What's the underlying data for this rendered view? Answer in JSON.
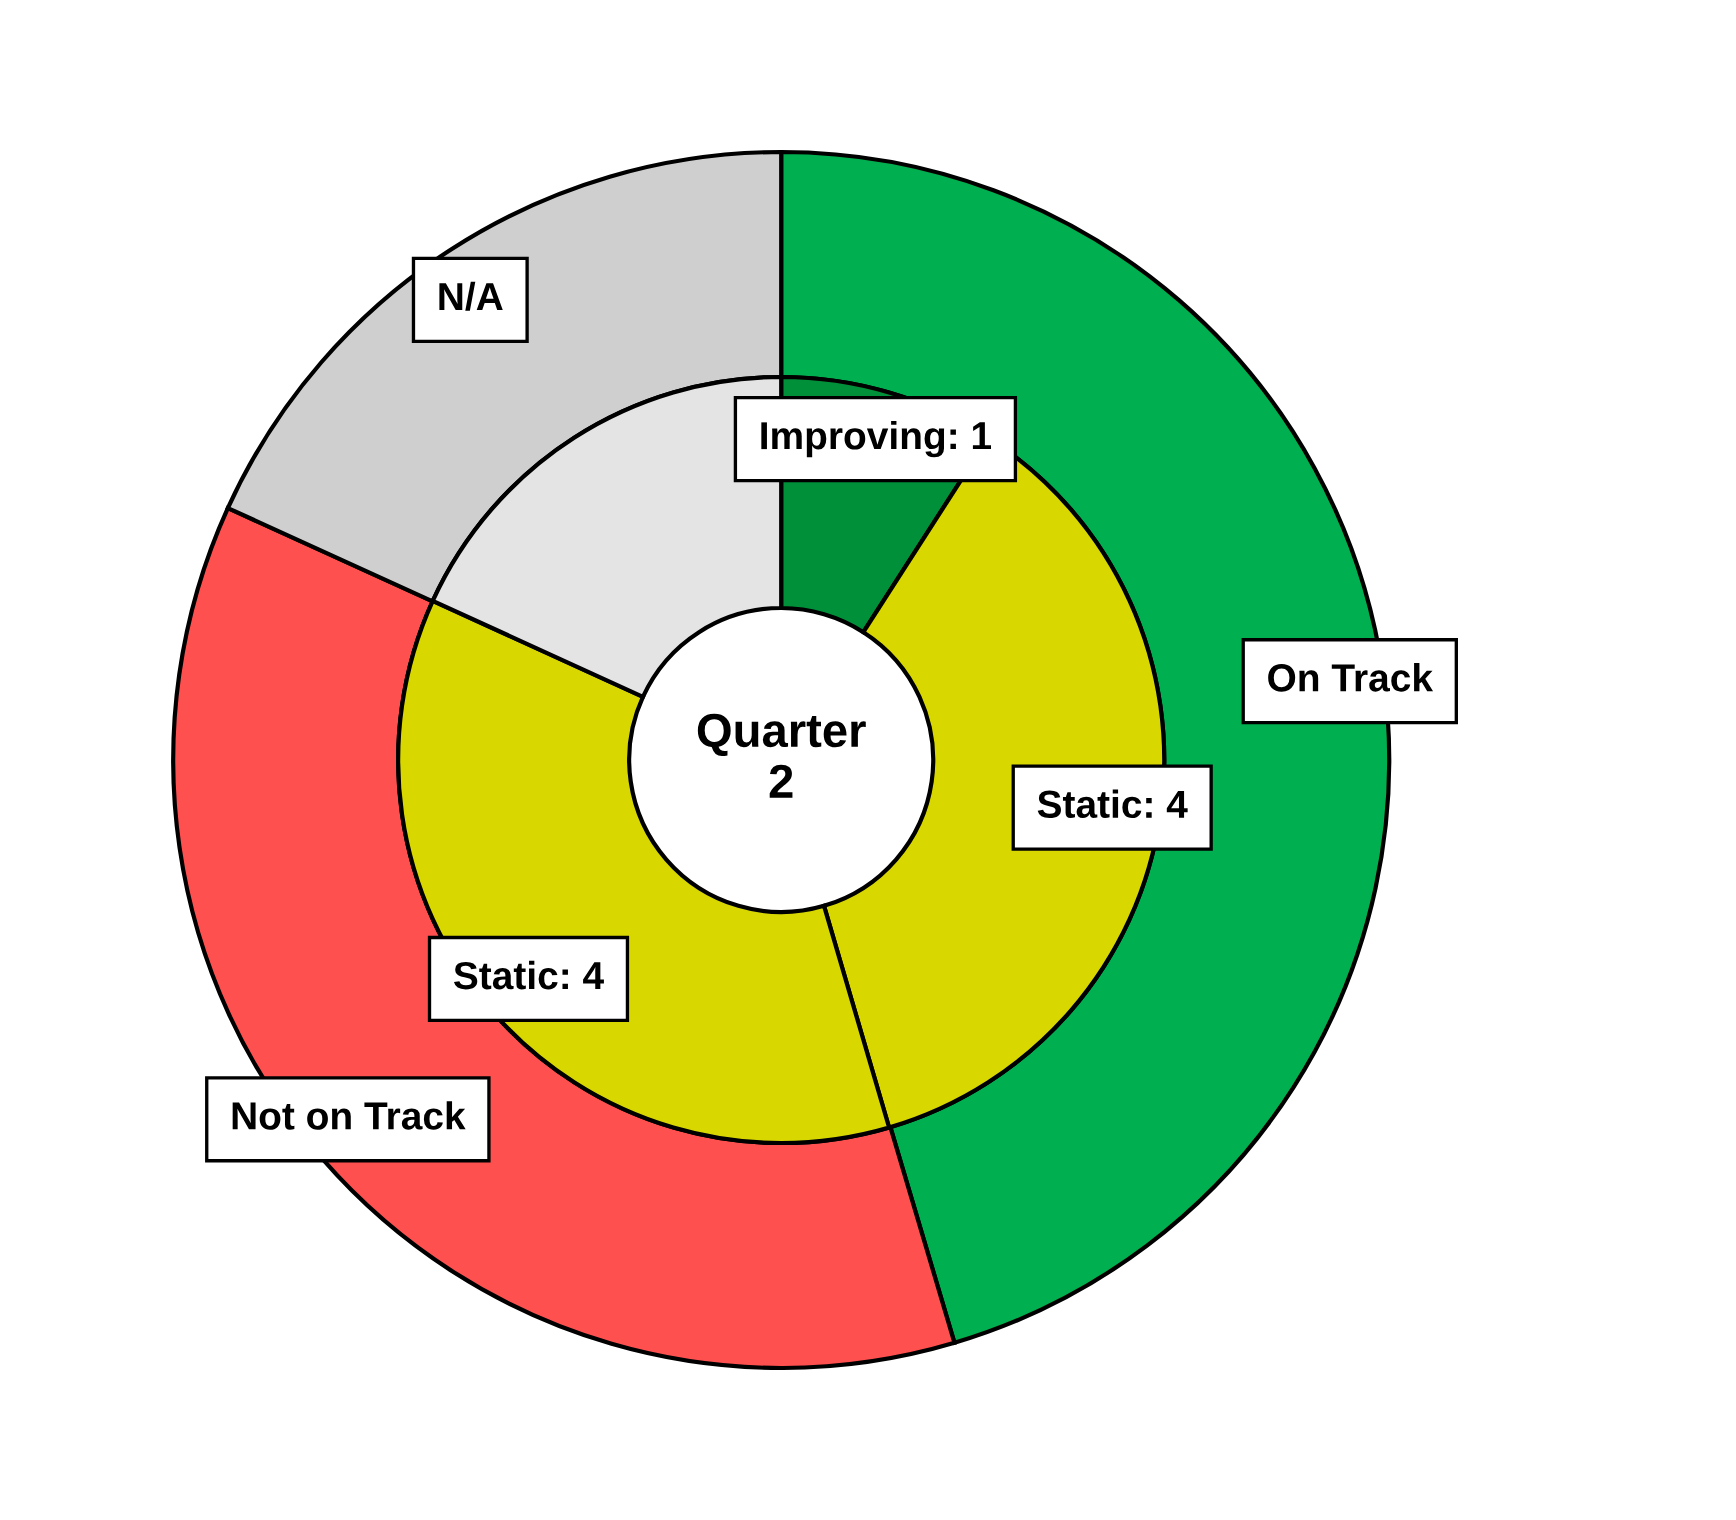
{
  "chart_data": {
    "type": "donut",
    "title": "Quarter\n2",
    "series": [
      {
        "values": [
          45.4,
          36.4,
          18.2
        ],
        "colors": [
          "#00b050",
          "#ff5050",
          "#cfcfcf"
        ],
        "value_labels": [
          "On Track",
          "Not on Track",
          "N/A"
        ]
      },
      {
        "values": [
          1,
          4,
          4,
          2
        ],
        "colors": [
          "#00903a",
          "#d8d800",
          "#d8d800",
          "#e4e4e4"
        ],
        "value_labels": [
          "Improving: 1",
          "Static: 4",
          "Static: 4",
          null
        ]
      }
    ]
  }
}
